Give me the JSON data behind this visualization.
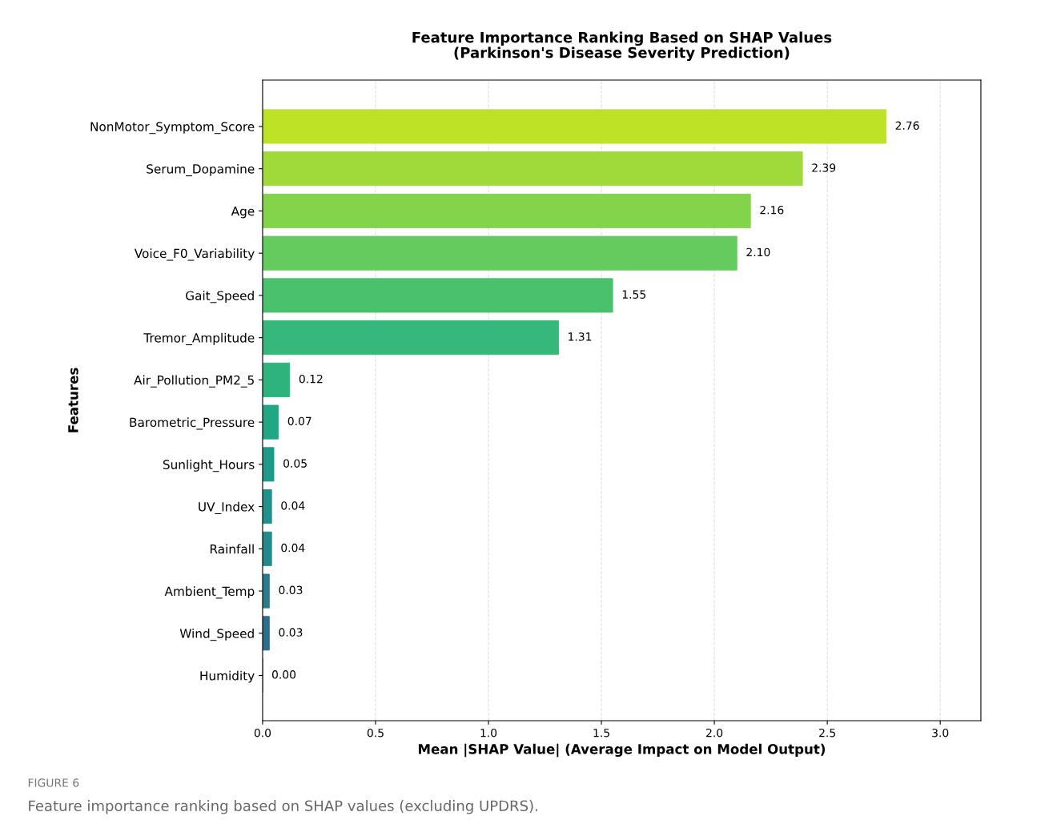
{
  "chart_data": {
    "type": "bar",
    "orientation": "horizontal",
    "title": "Feature Importance Ranking Based on SHAP Values\n(Parkinson's Disease Severity Prediction)",
    "xlabel": "Mean |SHAP Value| (Average Impact on Model Output)",
    "ylabel": "Features",
    "categories": [
      "NonMotor_Symptom_Score",
      "Serum_Dopamine",
      "Age",
      "Voice_F0_Variability",
      "Gait_Speed",
      "Tremor_Amplitude",
      "Air_Pollution_PM2_5",
      "Barometric_Pressure",
      "Sunlight_Hours",
      "UV_Index",
      "Rainfall",
      "Ambient_Temp",
      "Wind_Speed",
      "Humidity"
    ],
    "values": [
      2.76,
      2.39,
      2.16,
      2.1,
      1.55,
      1.31,
      0.12,
      0.07,
      0.05,
      0.04,
      0.04,
      0.03,
      0.03,
      0.0
    ],
    "value_labels": [
      "2.76",
      "2.39",
      "2.16",
      "2.10",
      "1.55",
      "1.31",
      "0.12",
      "0.07",
      "0.05",
      "0.04",
      "0.04",
      "0.03",
      "0.03",
      "0.00"
    ],
    "colors": [
      "#bde226",
      "#9fda3a",
      "#84d44b",
      "#65cb5e",
      "#4ac16d",
      "#36b77b",
      "#2eb37c",
      "#22a785",
      "#1f9a8a",
      "#21918c",
      "#23898e",
      "#297b8e",
      "#2d6e8e",
      "#33638d"
    ],
    "xlim": [
      0,
      3.18
    ],
    "xticks": [
      {
        "value": 0,
        "label": "0.0"
      },
      0.5,
      {
        "value": 1,
        "label": "1.0"
      },
      1.5,
      {
        "value": 2,
        "label": "2.0"
      },
      2.5,
      {
        "value": 3,
        "label": "3.0"
      }
    ],
    "grid": "x",
    "legend": false,
    "annotations": [
      "FIGURE 6",
      "Feature importance ranking based on SHAP values (excluding UPDRS)."
    ]
  }
}
